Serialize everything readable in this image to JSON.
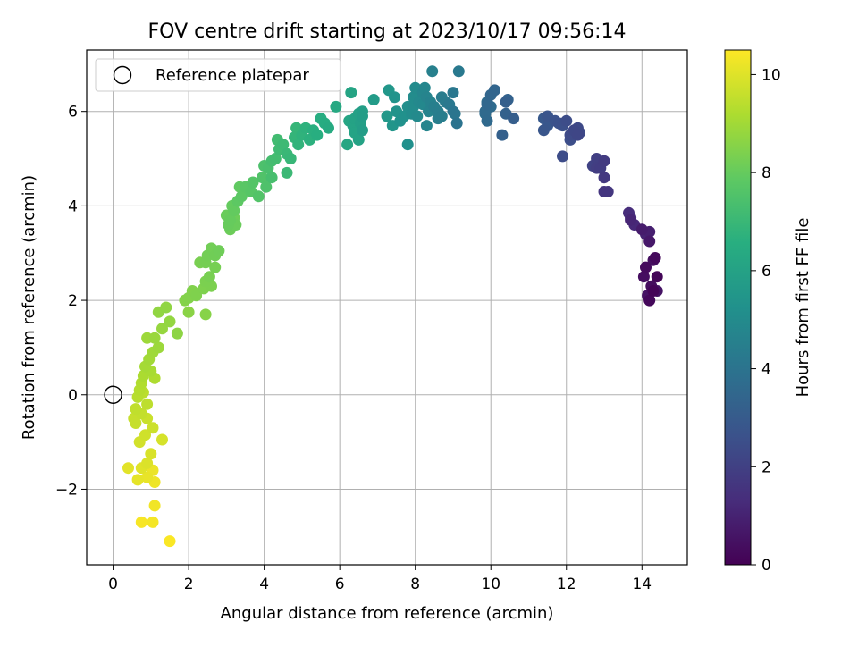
{
  "chart_data": {
    "type": "scatter",
    "title": "FOV centre drift starting at 2023/10/17 09:56:14",
    "xlabel": "Angular distance from reference (arcmin)",
    "ylabel": "Rotation from reference (arcmin)",
    "xlim": [
      -0.7,
      15.2
    ],
    "ylim": [
      -3.6,
      7.3
    ],
    "xticks": [
      0,
      2,
      4,
      6,
      8,
      10,
      12,
      14
    ],
    "yticks": [
      -2,
      0,
      2,
      4,
      6
    ],
    "xtick_labels": [
      "0",
      "2",
      "4",
      "6",
      "8",
      "10",
      "12",
      "14"
    ],
    "ytick_labels": [
      "−2",
      "0",
      "2",
      "4",
      "6"
    ],
    "grid": true,
    "legend": {
      "placement": "top-left",
      "entries": [
        "Reference platepar"
      ]
    },
    "reference_point": {
      "x": 0,
      "y": 0
    },
    "colorbar": {
      "label": "Hours from first FF file",
      "colormap": "viridis",
      "range": [
        0,
        10.5
      ],
      "ticks": [
        0,
        2,
        4,
        6,
        8,
        10
      ],
      "tick_labels": [
        "0",
        "2",
        "4",
        "6",
        "8",
        "10"
      ]
    },
    "series": [
      {
        "points": [
          [
            14.3,
            2.2,
            0.1
          ],
          [
            14.4,
            2.5,
            0.15
          ],
          [
            14.2,
            2.0,
            0.2
          ],
          [
            14.35,
            2.9,
            0.25
          ],
          [
            14.1,
            2.7,
            0.3
          ],
          [
            14.25,
            2.3,
            0.35
          ],
          [
            14.05,
            2.5,
            0.4
          ],
          [
            14.3,
            2.85,
            0.45
          ],
          [
            14.15,
            2.1,
            0.5
          ],
          [
            14.4,
            2.2,
            0.55
          ],
          [
            14.2,
            3.25,
            0.7
          ],
          [
            14.0,
            3.5,
            0.8
          ],
          [
            14.2,
            3.45,
            0.9
          ],
          [
            14.1,
            3.4,
            1.0
          ],
          [
            13.7,
            3.7,
            1.1
          ],
          [
            13.8,
            3.6,
            1.2
          ],
          [
            13.65,
            3.85,
            1.3
          ],
          [
            13.7,
            3.75,
            1.35
          ],
          [
            13.0,
            4.3,
            1.6
          ],
          [
            13.1,
            4.3,
            1.65
          ],
          [
            13.0,
            4.6,
            1.7
          ],
          [
            13.0,
            4.95,
            1.8
          ],
          [
            12.9,
            4.8,
            1.85
          ],
          [
            12.8,
            4.8,
            1.9
          ],
          [
            12.8,
            5.0,
            1.95
          ],
          [
            12.9,
            4.9,
            2.0
          ],
          [
            12.7,
            4.85,
            2.05
          ],
          [
            12.3,
            5.5,
            2.2
          ],
          [
            12.2,
            5.6,
            2.25
          ],
          [
            12.3,
            5.65,
            2.3
          ],
          [
            12.1,
            5.5,
            2.35
          ],
          [
            11.9,
            5.05,
            2.4
          ],
          [
            12.0,
            5.8,
            2.45
          ],
          [
            12.1,
            5.4,
            2.5
          ],
          [
            11.9,
            5.7,
            2.55
          ],
          [
            11.8,
            5.75,
            2.6
          ],
          [
            11.7,
            5.8,
            2.65
          ],
          [
            11.5,
            5.9,
            2.75
          ],
          [
            11.4,
            5.6,
            2.8
          ],
          [
            11.5,
            5.7,
            2.85
          ],
          [
            11.4,
            5.85,
            2.9
          ],
          [
            12.35,
            5.55,
            2.3
          ],
          [
            10.6,
            5.85,
            3.1
          ],
          [
            10.4,
            6.2,
            3.15
          ],
          [
            10.3,
            5.5,
            3.2
          ],
          [
            10.4,
            5.95,
            3.25
          ],
          [
            10.45,
            6.25,
            3.3
          ],
          [
            10.1,
            6.45,
            3.4
          ],
          [
            10.0,
            6.35,
            3.45
          ],
          [
            9.9,
            6.15,
            3.5
          ],
          [
            9.9,
            5.8,
            3.55
          ],
          [
            9.85,
            6.0,
            3.6
          ],
          [
            10.0,
            6.1,
            3.65
          ],
          [
            9.9,
            6.2,
            3.7
          ],
          [
            9.85,
            5.95,
            3.75
          ],
          [
            9.1,
            5.75,
            4.0
          ],
          [
            9.0,
            6.0,
            4.05
          ],
          [
            9.05,
            5.95,
            4.1
          ],
          [
            9.0,
            6.4,
            4.15
          ],
          [
            8.9,
            6.15,
            4.2
          ],
          [
            9.15,
            6.85,
            4.25
          ],
          [
            8.8,
            6.2,
            4.3
          ],
          [
            8.7,
            6.3,
            4.35
          ],
          [
            8.7,
            5.9,
            4.4
          ],
          [
            8.6,
            6.0,
            4.45
          ],
          [
            8.5,
            6.1,
            4.5
          ],
          [
            8.45,
            6.85,
            4.55
          ],
          [
            8.4,
            6.2,
            4.6
          ],
          [
            8.35,
            6.0,
            4.65
          ],
          [
            8.3,
            6.3,
            4.7
          ],
          [
            8.3,
            5.7,
            4.75
          ],
          [
            8.2,
            6.4,
            4.8
          ],
          [
            8.2,
            6.15,
            4.85
          ],
          [
            8.1,
            6.2,
            4.9
          ],
          [
            8.05,
            5.9,
            4.95
          ],
          [
            8.0,
            6.5,
            5.0
          ],
          [
            7.95,
            6.1,
            5.05
          ],
          [
            7.9,
            5.95,
            5.1
          ],
          [
            7.8,
            6.1,
            5.15
          ],
          [
            7.8,
            5.3,
            5.2
          ],
          [
            7.7,
            5.9,
            5.25
          ],
          [
            7.6,
            5.8,
            5.3
          ],
          [
            7.5,
            6.0,
            5.35
          ],
          [
            7.45,
            6.3,
            5.4
          ],
          [
            7.4,
            5.7,
            5.45
          ],
          [
            7.3,
            6.45,
            5.5
          ],
          [
            7.25,
            5.9,
            5.55
          ],
          [
            8.6,
            5.85,
            4.45
          ],
          [
            8.25,
            6.5,
            4.8
          ],
          [
            7.95,
            6.3,
            5.05
          ],
          [
            6.9,
            6.25,
            5.7
          ],
          [
            6.6,
            5.9,
            5.8
          ],
          [
            6.6,
            6.0,
            5.85
          ],
          [
            6.55,
            5.75,
            5.9
          ],
          [
            6.5,
            5.95,
            5.95
          ],
          [
            6.4,
            5.85,
            6.0
          ],
          [
            6.35,
            5.7,
            6.05
          ],
          [
            6.3,
            6.4,
            6.1
          ],
          [
            6.25,
            5.8,
            6.15
          ],
          [
            6.2,
            5.3,
            6.2
          ],
          [
            6.5,
            5.4,
            6.0
          ],
          [
            6.4,
            5.55,
            6.05
          ],
          [
            6.6,
            5.6,
            5.8
          ],
          [
            5.9,
            6.1,
            6.3
          ],
          [
            5.7,
            5.65,
            6.4
          ],
          [
            5.6,
            5.75,
            6.45
          ],
          [
            5.5,
            5.85,
            6.5
          ],
          [
            5.4,
            5.5,
            6.55
          ],
          [
            5.3,
            5.6,
            6.6
          ],
          [
            5.2,
            5.4,
            6.65
          ],
          [
            5.1,
            5.65,
            6.7
          ],
          [
            5.0,
            5.5,
            6.75
          ],
          [
            4.9,
            5.3,
            6.8
          ],
          [
            4.8,
            5.45,
            6.85
          ],
          [
            4.85,
            5.65,
            6.9
          ],
          [
            4.7,
            5.0,
            6.95
          ],
          [
            4.6,
            5.1,
            7.0
          ],
          [
            4.6,
            4.7,
            7.05
          ],
          [
            4.5,
            5.3,
            7.1
          ],
          [
            4.4,
            5.2,
            7.15
          ],
          [
            4.35,
            5.4,
            7.2
          ],
          [
            4.3,
            5.0,
            7.25
          ],
          [
            4.2,
            4.95,
            7.3
          ],
          [
            4.2,
            4.6,
            7.35
          ],
          [
            4.1,
            4.8,
            7.4
          ],
          [
            4.0,
            4.85,
            7.45
          ],
          [
            4.05,
            4.4,
            7.5
          ],
          [
            3.95,
            4.6,
            7.55
          ],
          [
            3.85,
            4.2,
            7.6
          ],
          [
            3.7,
            4.5,
            7.65
          ],
          [
            3.65,
            4.3,
            7.7
          ],
          [
            3.5,
            4.4,
            7.75
          ],
          [
            3.4,
            4.2,
            7.8
          ],
          [
            3.3,
            4.1,
            7.85
          ],
          [
            3.35,
            4.4,
            7.9
          ],
          [
            3.2,
            3.9,
            7.95
          ],
          [
            3.15,
            4.0,
            7.98
          ],
          [
            3.1,
            3.7,
            8.0
          ],
          [
            3.05,
            3.6,
            8.02
          ],
          [
            3.0,
            3.8,
            8.05
          ],
          [
            3.25,
            3.6,
            8.07
          ],
          [
            3.1,
            3.5,
            8.1
          ],
          [
            3.2,
            3.75,
            8.12
          ],
          [
            2.8,
            3.05,
            8.15
          ],
          [
            2.7,
            2.95,
            8.18
          ],
          [
            2.6,
            3.1,
            8.2
          ],
          [
            2.5,
            2.95,
            8.22
          ],
          [
            2.45,
            2.8,
            8.25
          ],
          [
            2.7,
            2.7,
            8.27
          ],
          [
            2.55,
            2.5,
            8.3
          ],
          [
            2.3,
            2.8,
            8.32
          ],
          [
            2.45,
            2.4,
            8.35
          ],
          [
            2.6,
            2.3,
            8.37
          ],
          [
            2.4,
            2.25,
            8.4
          ],
          [
            2.2,
            2.1,
            8.42
          ],
          [
            2.1,
            2.2,
            8.45
          ],
          [
            2.0,
            2.05,
            8.47
          ],
          [
            1.9,
            2.0,
            8.5
          ],
          [
            2.45,
            1.7,
            8.55
          ],
          [
            2.0,
            1.75,
            8.6
          ],
          [
            1.7,
            1.3,
            8.65
          ],
          [
            1.4,
            1.85,
            8.7
          ],
          [
            1.2,
            1.75,
            8.72
          ],
          [
            1.5,
            1.55,
            8.75
          ],
          [
            1.3,
            1.4,
            8.8
          ],
          [
            1.1,
            1.2,
            8.85
          ],
          [
            1.2,
            1.0,
            8.9
          ],
          [
            0.9,
            1.2,
            8.92
          ],
          [
            1.05,
            0.9,
            8.95
          ],
          [
            0.95,
            0.75,
            9.0
          ],
          [
            0.85,
            0.6,
            9.05
          ],
          [
            1.0,
            0.5,
            9.1
          ],
          [
            0.8,
            0.4,
            9.15
          ],
          [
            1.1,
            0.35,
            9.2
          ],
          [
            0.75,
            0.25,
            9.25
          ],
          [
            0.7,
            0.1,
            9.3
          ],
          [
            0.65,
            -0.05,
            9.35
          ],
          [
            0.8,
            0.05,
            9.4
          ],
          [
            0.9,
            -0.2,
            9.45
          ],
          [
            0.6,
            -0.3,
            9.5
          ],
          [
            0.75,
            -0.4,
            9.55
          ],
          [
            0.55,
            -0.5,
            9.6
          ],
          [
            0.9,
            -0.5,
            9.65
          ],
          [
            1.05,
            -0.7,
            9.7
          ],
          [
            0.85,
            -0.85,
            9.75
          ],
          [
            0.7,
            -1.0,
            9.8
          ],
          [
            1.3,
            -0.95,
            9.85
          ],
          [
            1.0,
            -1.25,
            9.9
          ],
          [
            0.9,
            -1.45,
            9.95
          ],
          [
            0.75,
            -1.55,
            10.0
          ],
          [
            0.4,
            -1.55,
            10.05
          ],
          [
            0.65,
            -1.8,
            10.1
          ],
          [
            0.9,
            -1.75,
            10.15
          ],
          [
            1.05,
            -1.6,
            10.2
          ],
          [
            1.1,
            -1.85,
            10.25
          ],
          [
            1.1,
            -2.35,
            10.3
          ],
          [
            1.05,
            -2.7,
            10.35
          ],
          [
            0.75,
            -2.7,
            10.4
          ],
          [
            1.5,
            -3.1,
            10.45
          ],
          [
            0.6,
            -0.6,
            9.6
          ]
        ]
      }
    ]
  }
}
